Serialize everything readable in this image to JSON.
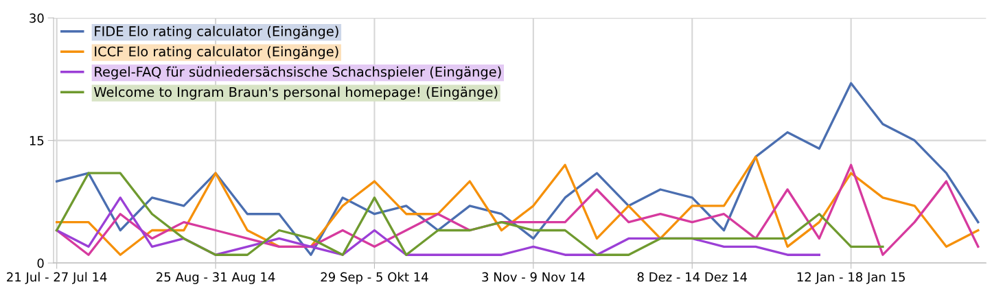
{
  "chart_data": {
    "type": "line",
    "categories": [
      "21 Jul - 27 Jul 14",
      null,
      null,
      null,
      null,
      "25 Aug - 31 Aug 14",
      null,
      null,
      null,
      null,
      "29 Sep - 5 Okt 14",
      null,
      null,
      null,
      null,
      "3 Nov - 9 Nov 14",
      null,
      null,
      null,
      null,
      "8 Dez - 14 Dez 14",
      null,
      null,
      null,
      null,
      "12 Jan - 18 Jan 15",
      null,
      null,
      null,
      null
    ],
    "series": [
      {
        "name": "FIDE Elo rating calculator (Eingänge)",
        "color": "#4a6eb0",
        "values": [
          10,
          11,
          4,
          8,
          7,
          11,
          6,
          6,
          1,
          8,
          6,
          7,
          4,
          7,
          6,
          3,
          8,
          11,
          7,
          9,
          8,
          4,
          13,
          16,
          14,
          22,
          17,
          15,
          11,
          5
        ]
      },
      {
        "name": "ICCF Elo rating calculator (Eingänge)",
        "color": "#f5900a",
        "values": [
          5,
          5,
          1,
          4,
          4,
          11,
          4,
          2,
          2,
          7,
          10,
          6,
          6,
          10,
          4,
          7,
          12,
          3,
          7,
          3,
          7,
          7,
          13,
          2,
          5,
          11,
          8,
          7,
          2,
          4
        ]
      },
      {
        "color": "#d63a9e",
        "values": [
          4,
          1,
          6,
          3,
          5,
          4,
          3,
          2,
          2,
          4,
          2,
          4,
          6,
          4,
          5,
          5,
          5,
          9,
          5,
          6,
          5,
          6,
          3,
          9,
          3,
          12,
          1,
          5,
          10,
          2
        ]
      },
      {
        "name": "Regel-FAQ für südniedersächsische Schachspieler (Eingänge)",
        "color": "#9b3fd6",
        "values": [
          4,
          2,
          8,
          2,
          3,
          1,
          2,
          3,
          2,
          1,
          4,
          1,
          1,
          1,
          1,
          2,
          1,
          1,
          3,
          3,
          3,
          2,
          2,
          1,
          1,
          null,
          null,
          null,
          null,
          null
        ]
      },
      {
        "name": "Welcome to Ingram Braun's personal homepage! (Eingänge)",
        "color": "#6f9a2f",
        "values": [
          4,
          11,
          11,
          6,
          3,
          1,
          1,
          4,
          3,
          1,
          8,
          1,
          4,
          4,
          5,
          4,
          4,
          1,
          1,
          3,
          3,
          3,
          3,
          3,
          6,
          2,
          2,
          null,
          null,
          null
        ]
      }
    ],
    "ylim": [
      0,
      30
    ],
    "yticks": [
      0,
      15,
      30
    ],
    "grid": true,
    "legend": "top left"
  }
}
